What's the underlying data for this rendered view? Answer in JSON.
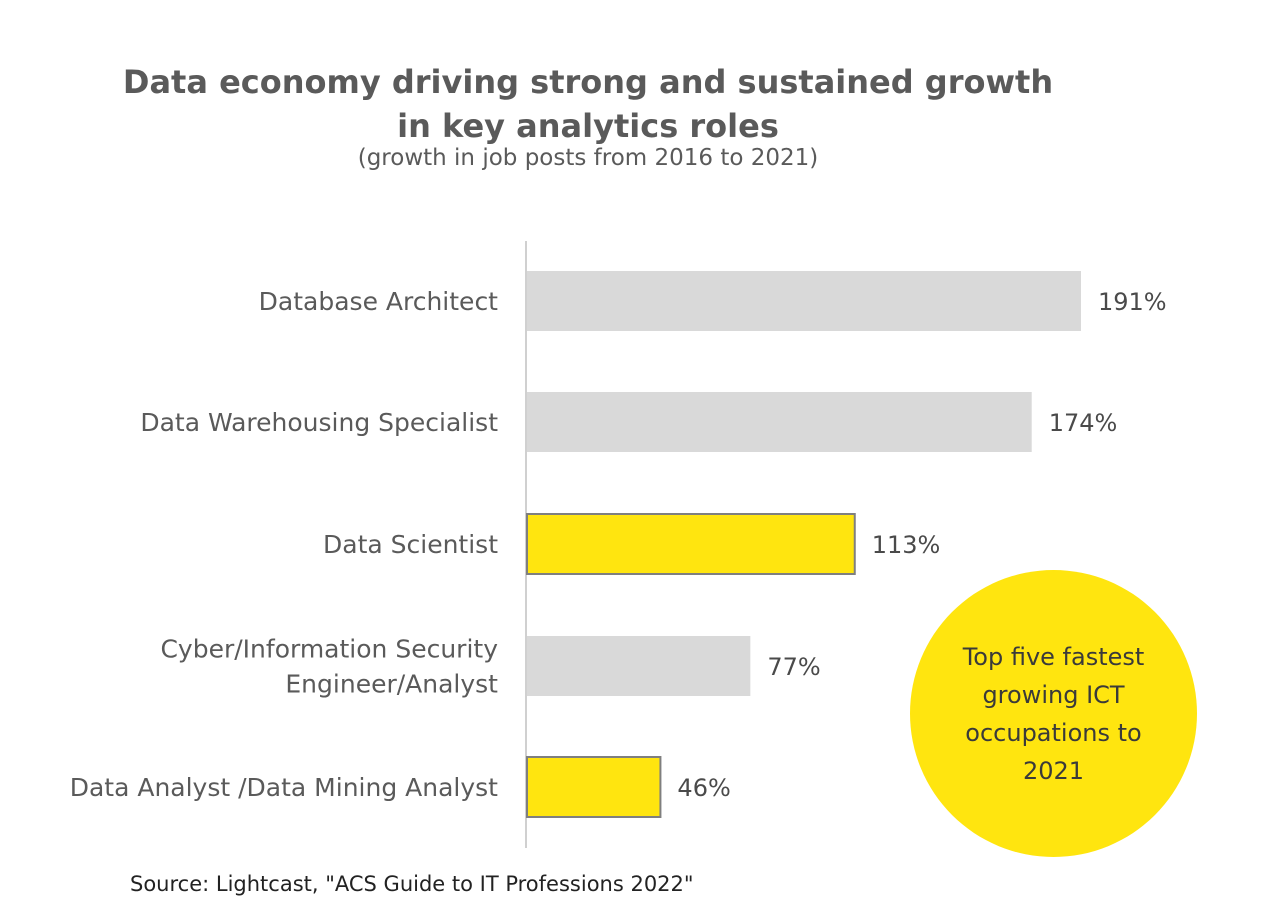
{
  "title_line1": "Data economy driving strong and sustained growth",
  "title_line2": "in key analytics roles",
  "subtitle": "(growth in job posts from 2016 to 2021)",
  "callout": "Top five fastest growing ICT occupations to 2021",
  "source": "Source: Lightcast, \"ACS Guide to IT Professions 2022\"",
  "colors": {
    "highlight": "#ffe50f",
    "default_bar": "#d9d9d9",
    "highlight_border": "#7f7f7f",
    "axis": "#d0d0d0"
  },
  "chart_data": {
    "type": "bar",
    "orientation": "horizontal",
    "categories": [
      [
        "Database Architect"
      ],
      [
        "Data Warehousing Specialist"
      ],
      [
        "Data Scientist"
      ],
      [
        "Cyber/Information Security",
        "Engineer/Analyst"
      ],
      [
        "Data Analyst  /Data Mining Analyst"
      ]
    ],
    "values": [
      191,
      174,
      113,
      77,
      46
    ],
    "value_labels": [
      "191%",
      "174%",
      "113%",
      "77%",
      "46%"
    ],
    "highlighted": [
      false,
      false,
      true,
      false,
      true
    ],
    "title": "Data economy driving strong and sustained growth in key analytics roles",
    "subtitle": "(growth in job posts from 2016 to 2021)",
    "xlabel": "",
    "ylabel": "",
    "xlim": [
      0,
      191
    ],
    "grid": false,
    "legend": "none"
  }
}
